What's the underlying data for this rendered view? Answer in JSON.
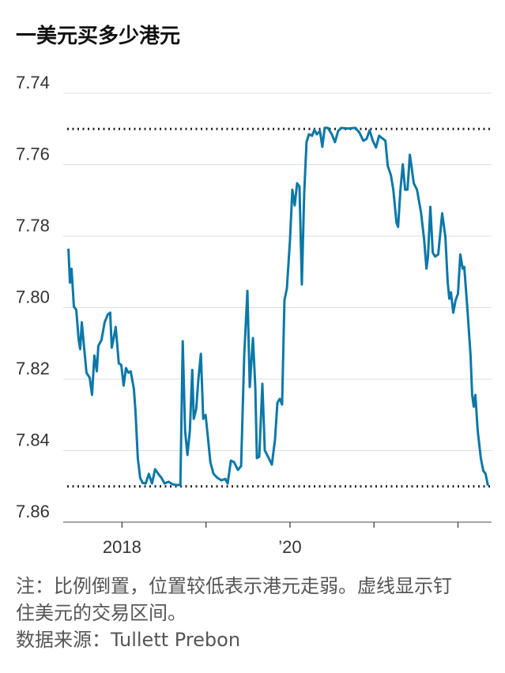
{
  "chart_data": {
    "type": "line",
    "title": "一美元买多少港元",
    "note": "注：比例倒置，位置较低表示港元走弱。虚线显示钉住美元的交易区间。",
    "source": "数据来源：Tullett Prebon",
    "color": "#0b78a8",
    "y_inverted": true,
    "grid": true,
    "ylim": [
      7.74,
      7.86
    ],
    "yticks": [
      7.74,
      7.76,
      7.78,
      {
        "value": 7.8,
        "label": "7.80"
      },
      7.82,
      7.84,
      7.86
    ],
    "xlim": [
      2017.3,
      2022.4
    ],
    "xticks": [
      2018,
      {
        "value": 2019,
        "label": null
      },
      {
        "value": 2020,
        "label": "’20"
      },
      {
        "value": 2021,
        "label": null
      },
      {
        "value": 2022,
        "label": null
      }
    ],
    "reference_lines": [
      7.75,
      7.85
    ],
    "x": [
      2017.362,
      2017.38,
      2017.399,
      2017.427,
      2017.455,
      2017.484,
      2017.502,
      2017.521,
      2017.549,
      2017.577,
      2017.615,
      2017.643,
      2017.671,
      2017.7,
      2017.718,
      2017.756,
      2017.793,
      2017.831,
      2017.859,
      2017.878,
      2017.897,
      2017.925,
      2017.962,
      2017.991,
      2018.019,
      2018.047,
      2018.075,
      2018.103,
      2018.141,
      2018.16,
      2018.188,
      2018.216,
      2018.244,
      2018.282,
      2018.319,
      2018.357,
      2018.394,
      2018.432,
      2018.469,
      2018.507,
      2018.554,
      2018.601,
      2018.648,
      2018.695,
      2018.723,
      2018.751,
      2018.779,
      2018.808,
      2018.836,
      2018.854,
      2018.883,
      2018.911,
      2018.939,
      2018.967,
      2018.995,
      2019.024,
      2019.052,
      2019.089,
      2019.136,
      2019.183,
      2019.23,
      2019.258,
      2019.296,
      2019.333,
      2019.38,
      2019.418,
      2019.455,
      2019.493,
      2019.521,
      2019.559,
      2019.587,
      2019.606,
      2019.634,
      2019.671,
      2019.7,
      2019.747,
      2019.784,
      2019.822,
      2019.85,
      2019.878,
      2019.906,
      2019.934,
      2019.963,
      2020.0,
      2020.028,
      2020.056,
      2020.085,
      2020.113,
      2020.141,
      2020.169,
      2020.197,
      2020.225,
      2020.263,
      2020.291,
      2020.319,
      2020.357,
      2020.385,
      2020.413,
      2020.451,
      2020.498,
      2020.535,
      2020.573,
      2020.61,
      2020.686,
      2020.779,
      2020.826,
      2020.873,
      2020.911,
      2020.948,
      2020.986,
      2021.024,
      2021.061,
      2021.099,
      2021.136,
      2021.164,
      2021.202,
      2021.23,
      2021.268,
      2021.287,
      2021.315,
      2021.343,
      2021.371,
      2021.399,
      2021.427,
      2021.446,
      2021.474,
      2021.512,
      2021.559,
      2021.596,
      2021.625,
      2021.643,
      2021.671,
      2021.7,
      2021.728,
      2021.765,
      2021.812,
      2021.85,
      2021.878,
      2021.897,
      2021.916,
      2021.944,
      2021.972,
      2022.0,
      2022.028,
      2022.056,
      2022.075,
      2022.113,
      2022.15,
      2022.169,
      2022.188,
      2022.207,
      2022.235,
      2022.272,
      2022.301,
      2022.329,
      2022.357
    ],
    "values": [
      7.7835,
      7.793,
      7.7891,
      7.7997,
      7.8006,
      7.809,
      7.8116,
      7.8041,
      7.8112,
      7.8182,
      7.8196,
      7.8244,
      7.8134,
      7.8178,
      7.8107,
      7.809,
      7.8041,
      7.8019,
      7.8014,
      7.8112,
      7.809,
      7.8054,
      7.8156,
      7.816,
      7.8218,
      7.8169,
      7.8182,
      7.8178,
      7.8227,
      7.8288,
      7.8421,
      7.8476,
      7.849,
      7.8492,
      7.8465,
      7.8492,
      7.8452,
      7.8465,
      7.8476,
      7.8492,
      7.8487,
      7.8494,
      7.8496,
      7.8496,
      7.8094,
      7.8344,
      7.8412,
      7.8344,
      7.8174,
      7.8311,
      7.8284,
      7.8196,
      7.8129,
      7.8311,
      7.83,
      7.8366,
      7.8432,
      7.8465,
      7.8476,
      7.8483,
      7.8479,
      7.8492,
      7.8428,
      7.8432,
      7.8454,
      7.8443,
      7.8134,
      7.7953,
      7.8222,
      7.8085,
      7.8222,
      7.8421,
      7.8417,
      7.8213,
      7.8399,
      7.8421,
      7.8439,
      7.8368,
      7.8266,
      7.8255,
      7.8271,
      7.7979,
      7.7946,
      7.7811,
      7.767,
      7.7714,
      7.7652,
      7.7661,
      7.7935,
      7.7681,
      7.7537,
      7.7515,
      7.7519,
      7.7502,
      7.7515,
      7.7506,
      7.755,
      7.7497,
      7.7497,
      7.7515,
      7.7537,
      7.7506,
      7.7497,
      7.7499,
      7.7497,
      7.751,
      7.7533,
      7.7528,
      7.7504,
      7.7533,
      7.7552,
      7.7519,
      7.7526,
      7.7533,
      7.7603,
      7.763,
      7.767,
      7.7762,
      7.7774,
      7.767,
      7.7599,
      7.767,
      7.767,
      7.7572,
      7.7603,
      7.7652,
      7.767,
      7.7732,
      7.7807,
      7.7891,
      7.7857,
      7.7718,
      7.7846,
      7.7857,
      7.7851,
      7.7736,
      7.7802,
      7.793,
      7.7975,
      7.7957,
      7.8014,
      7.7979,
      7.7961,
      7.7851,
      7.7891,
      7.7886,
      7.8006,
      7.8134,
      7.8244,
      7.8277,
      7.8244,
      7.8344,
      7.8421,
      7.8456,
      7.8465,
      7.8498
    ]
  }
}
